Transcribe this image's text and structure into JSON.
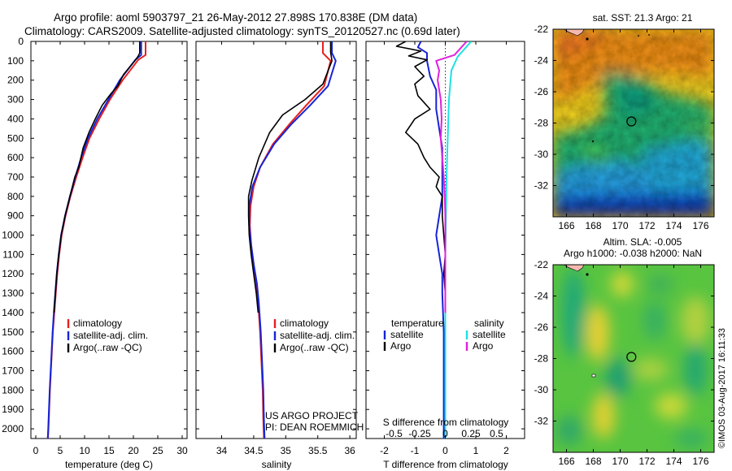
{
  "title": {
    "line1": "Argo profile: aoml 5903797_21 26-May-2012 27.898S 170.838E (DM data)",
    "line2": "Climatology: CARS2009. Satellite-adjusted climatology: synTS_20120527.nc (0.69d later)"
  },
  "colors": {
    "climatology": "#e8201e",
    "satellite": "#1624d8",
    "argo": "#000000",
    "salinity_satellite": "#20e0e0",
    "salinity_argo": "#e020e0"
  },
  "depth_axis": {
    "range": [
      0,
      2050
    ],
    "ticks": [
      "0",
      "100",
      "200",
      "300",
      "400",
      "500",
      "600",
      "700",
      "800",
      "900",
      "1000",
      "1100",
      "1200",
      "1300",
      "1400",
      "1500",
      "1600",
      "1700",
      "1800",
      "1900",
      "2000"
    ]
  },
  "chart_data": [
    {
      "type": "line",
      "id": "temperature",
      "xlabel": "temperature (deg C)",
      "xlim": [
        -1,
        31
      ],
      "xticks": [
        "0",
        "5",
        "10",
        "15",
        "20",
        "25",
        "30"
      ],
      "ylim": [
        2050,
        0
      ],
      "legend": {
        "position": "bottom-center",
        "entries": [
          "climatology",
          "satellite-adj. clim.",
          "Argo(..raw -QC)"
        ]
      },
      "series": [
        {
          "name": "climatology",
          "color": "#e8201e",
          "points": [
            [
              22.5,
              0
            ],
            [
              22.5,
              70
            ],
            [
              21,
              95
            ],
            [
              17.8,
              200
            ],
            [
              15.2,
              300
            ],
            [
              13,
              400
            ],
            [
              11,
              500
            ],
            [
              9.6,
              600
            ],
            [
              8.3,
              700
            ],
            [
              7.1,
              800
            ],
            [
              6.1,
              900
            ],
            [
              5.3,
              1000
            ],
            [
              4.8,
              1100
            ],
            [
              4.4,
              1200
            ],
            [
              4.1,
              1300
            ],
            [
              3.8,
              1400
            ],
            [
              3.5,
              1500
            ],
            [
              3.3,
              1600
            ],
            [
              3.1,
              1700
            ],
            [
              2.9,
              1800
            ],
            [
              2.75,
              1900
            ],
            [
              2.6,
              2000
            ],
            [
              2.5,
              2050
            ]
          ]
        },
        {
          "name": "satellite-adj. clim.",
          "color": "#1624d8",
          "points": [
            [
              21.6,
              0
            ],
            [
              21.6,
              70
            ],
            [
              20.4,
              95
            ],
            [
              17.2,
              200
            ],
            [
              14.9,
              300
            ],
            [
              12.6,
              400
            ],
            [
              10.7,
              500
            ],
            [
              9.3,
              600
            ],
            [
              8.1,
              700
            ],
            [
              7.0,
              800
            ],
            [
              6.0,
              900
            ],
            [
              5.2,
              1000
            ],
            [
              4.7,
              1100
            ],
            [
              4.3,
              1200
            ],
            [
              4.0,
              1300
            ],
            [
              3.7,
              1400
            ],
            [
              3.45,
              1500
            ],
            [
              3.25,
              1600
            ],
            [
              3.05,
              1700
            ],
            [
              2.85,
              1800
            ],
            [
              2.7,
              1900
            ],
            [
              2.55,
              2000
            ],
            [
              2.45,
              2050
            ]
          ]
        },
        {
          "name": "Argo(..raw -QC)",
          "color": "#000000",
          "points": [
            [
              21.3,
              0
            ],
            [
              21.3,
              60
            ],
            [
              21.0,
              75
            ],
            [
              20.3,
              100
            ],
            [
              18.0,
              170
            ],
            [
              16.8,
              230
            ],
            [
              15.4,
              270
            ],
            [
              13.6,
              330
            ],
            [
              12.2,
              400
            ],
            [
              10.9,
              470
            ],
            [
              9.7,
              550
            ],
            [
              8.8,
              650
            ],
            [
              8.0,
              700
            ],
            [
              7.0,
              800
            ],
            [
              6.0,
              900
            ],
            [
              5.2,
              1000
            ],
            [
              4.7,
              1100
            ],
            [
              4.3,
              1200
            ],
            [
              4.0,
              1300
            ],
            [
              3.75,
              1400
            ]
          ]
        }
      ]
    },
    {
      "type": "line",
      "id": "salinity",
      "xlabel": "salinity",
      "xlim": [
        33.6,
        36.1
      ],
      "xticks": [
        "34",
        "34.5",
        "35",
        "35.5",
        "36"
      ],
      "ylim": [
        2050,
        0
      ],
      "legend": {
        "position": "bottom-center",
        "entries": [
          "climatology",
          "satellite-adj. clim.",
          "Argo(..raw -QC)"
        ]
      },
      "annotation": [
        "US ARGO PROJECT",
        "PI: DEAN ROEMMICH"
      ],
      "series": [
        {
          "name": "climatology",
          "color": "#e8201e",
          "points": [
            [
              35.58,
              0
            ],
            [
              35.58,
              60
            ],
            [
              35.7,
              100
            ],
            [
              35.6,
              230
            ],
            [
              35.32,
              330
            ],
            [
              35.05,
              430
            ],
            [
              34.8,
              530
            ],
            [
              34.6,
              650
            ],
            [
              34.5,
              750
            ],
            [
              34.45,
              850
            ],
            [
              34.44,
              950
            ],
            [
              34.46,
              1050
            ],
            [
              34.5,
              1150
            ],
            [
              34.54,
              1250
            ],
            [
              34.57,
              1350
            ],
            [
              34.6,
              1500
            ],
            [
              34.62,
              1650
            ],
            [
              34.64,
              1800
            ],
            [
              34.65,
              1950
            ],
            [
              34.66,
              2050
            ]
          ]
        },
        {
          "name": "satellite-adj. clim.",
          "color": "#1624d8",
          "points": [
            [
              35.72,
              0
            ],
            [
              35.72,
              60
            ],
            [
              35.78,
              100
            ],
            [
              35.66,
              230
            ],
            [
              35.38,
              330
            ],
            [
              35.08,
              430
            ],
            [
              34.82,
              530
            ],
            [
              34.6,
              650
            ],
            [
              34.48,
              750
            ],
            [
              34.43,
              850
            ],
            [
              34.43,
              950
            ],
            [
              34.46,
              1050
            ],
            [
              34.5,
              1150
            ],
            [
              34.55,
              1250
            ],
            [
              34.58,
              1350
            ],
            [
              34.61,
              1500
            ],
            [
              34.63,
              1650
            ],
            [
              34.65,
              1800
            ],
            [
              34.66,
              1950
            ],
            [
              34.67,
              2050
            ]
          ]
        },
        {
          "name": "Argo(..raw -QC)",
          "color": "#000000",
          "points": [
            [
              35.7,
              0
            ],
            [
              35.7,
              55
            ],
            [
              35.72,
              100
            ],
            [
              35.58,
              220
            ],
            [
              35.3,
              300
            ],
            [
              34.95,
              380
            ],
            [
              34.75,
              470
            ],
            [
              34.58,
              600
            ],
            [
              34.47,
              720
            ],
            [
              34.42,
              800
            ],
            [
              34.42,
              900
            ],
            [
              34.43,
              1000
            ],
            [
              34.46,
              1100
            ],
            [
              34.5,
              1200
            ],
            [
              34.54,
              1300
            ],
            [
              34.57,
              1400
            ]
          ]
        }
      ]
    },
    {
      "type": "line",
      "id": "differences",
      "xlabel": "T difference from climatology",
      "xlabel_top": "S difference from climatology",
      "xlim": [
        -2.6,
        2.6
      ],
      "xticks": [
        "-2",
        "-1",
        "0",
        "1",
        "2"
      ],
      "xticks_top": [
        "-0.5",
        "-0.25",
        "0",
        "0.25",
        "0.5"
      ],
      "ylim": [
        2050,
        0
      ],
      "legend": {
        "position": "bottom",
        "temperature_heading": "temperature",
        "salinity_heading": "salinity",
        "entries": [
          "satellite",
          "Argo",
          "satellite",
          "Argo"
        ]
      },
      "series": [
        {
          "name": "satellite",
          "group": "temperature",
          "color": "#1624d8",
          "points": [
            [
              -0.8,
              0
            ],
            [
              -0.9,
              30
            ],
            [
              -0.6,
              60
            ],
            [
              -0.6,
              100
            ],
            [
              -0.5,
              180
            ],
            [
              -0.3,
              250
            ],
            [
              -0.3,
              350
            ],
            [
              -0.2,
              450
            ],
            [
              -0.1,
              550
            ],
            [
              -0.1,
              700
            ],
            [
              -0.1,
              800
            ],
            [
              -0.2,
              900
            ],
            [
              -0.3,
              1000
            ],
            [
              -0.2,
              1100
            ],
            [
              -0.1,
              1200
            ],
            [
              -0.1,
              1300
            ],
            [
              -0.05,
              1500
            ],
            [
              -0.05,
              1700
            ],
            [
              -0.05,
              1900
            ],
            [
              -0.05,
              2050
            ]
          ]
        },
        {
          "name": "Argo",
          "group": "temperature",
          "color": "#000000",
          "points": [
            [
              -1.3,
              0
            ],
            [
              -1.6,
              25
            ],
            [
              -0.8,
              50
            ],
            [
              -1.2,
              75
            ],
            [
              -0.6,
              95
            ],
            [
              -1.0,
              130
            ],
            [
              -0.7,
              180
            ],
            [
              -1.0,
              220
            ],
            [
              -0.9,
              280
            ],
            [
              -0.5,
              350
            ],
            [
              -1.0,
              400
            ],
            [
              -1.3,
              470
            ],
            [
              -0.9,
              530
            ],
            [
              -0.7,
              600
            ],
            [
              -0.5,
              650
            ],
            [
              -0.2,
              700
            ],
            [
              -0.3,
              750
            ],
            [
              -0.1,
              800
            ],
            [
              -0.1,
              900
            ],
            [
              -0.05,
              1000
            ],
            [
              0,
              1100
            ],
            [
              -0.05,
              1200
            ],
            [
              0,
              1300
            ],
            [
              0,
              1400
            ]
          ]
        },
        {
          "name": "satellite",
          "group": "salinity",
          "color": "#20e0e0",
          "points": [
            [
              0.85,
              0
            ],
            [
              0.4,
              80
            ],
            [
              0.2,
              150
            ],
            [
              0.12,
              300
            ],
            [
              0.08,
              500
            ],
            [
              0.04,
              700
            ],
            [
              0.02,
              900
            ],
            [
              0,
              1100
            ],
            [
              0,
              1400
            ],
            [
              0,
              1700
            ],
            [
              0,
              2050
            ]
          ]
        },
        {
          "name": "Argo",
          "group": "salinity",
          "color": "#e020e0",
          "points": [
            [
              0.7,
              0
            ],
            [
              0.3,
              70
            ],
            [
              -0.3,
              100
            ],
            [
              -0.2,
              150
            ],
            [
              -0.25,
              200
            ],
            [
              -0.15,
              300
            ],
            [
              -0.12,
              400
            ],
            [
              -0.15,
              500
            ],
            [
              -0.1,
              600
            ],
            [
              -0.05,
              700
            ],
            [
              -0.02,
              800
            ],
            [
              0,
              900
            ],
            [
              0,
              1000
            ],
            [
              0,
              1200
            ],
            [
              0,
              1400
            ]
          ]
        }
      ]
    },
    {
      "type": "heatmap",
      "id": "sst-map",
      "title": "sat. SST: 21.3 Argo: 21",
      "xlim": [
        165,
        177
      ],
      "ylim": [
        -34,
        -22
      ],
      "xticks": [
        "166",
        "168",
        "170",
        "172",
        "174",
        "176"
      ],
      "yticks": [
        "-22",
        "-24",
        "-26",
        "-28",
        "-30",
        "-32"
      ],
      "marker": {
        "lon": 170.838,
        "lat": -27.898
      }
    },
    {
      "type": "heatmap",
      "id": "sla-map",
      "title_line1": "Altim. SLA: -0.005",
      "title_line2": "Argo h1000: -0.038 h2000: NaN",
      "xlim": [
        165,
        177
      ],
      "ylim": [
        -34,
        -22
      ],
      "xticks": [
        "166",
        "168",
        "170",
        "172",
        "174",
        "176"
      ],
      "yticks": [
        "-22",
        "-24",
        "-26",
        "-28",
        "-30",
        "-32"
      ],
      "marker": {
        "lon": 170.838,
        "lat": -27.898
      }
    }
  ],
  "credit": "©IMOS 03-Aug-2017 16:11:33"
}
